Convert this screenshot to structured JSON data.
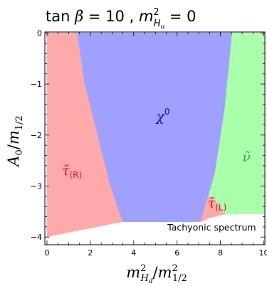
{
  "chart_data": {
    "type": "region-map",
    "title": {
      "prefix": "tan ",
      "beta": "β",
      "equals": " = 10 ,  ",
      "m": "m",
      "sup": "2",
      "sub": "H",
      "subsub": "u",
      "tail": " = 0"
    },
    "xlabel": {
      "m1": "m",
      "sup1": "2",
      "sub1": "H",
      "subsub1": "d",
      "slash": "/",
      "m2": "m",
      "sup2": "2",
      "sub2": "1/2"
    },
    "ylabel": {
      "a": "A",
      "sub": "0",
      "slash": "/",
      "m": "m",
      "msub": "1/2"
    },
    "xlim": [
      -0.1,
      10.05
    ],
    "ylim": [
      -4.15,
      0.02
    ],
    "xticks": [
      0,
      2,
      4,
      6,
      8,
      10
    ],
    "xtick_labels": [
      "0",
      "2",
      "4",
      "6",
      "8",
      "10"
    ],
    "yticks": [
      0,
      -1,
      -2,
      -3,
      -4
    ],
    "ytick_labels": [
      "0",
      "−1",
      "−2",
      "−3",
      "−4"
    ],
    "colors": {
      "stau": "#FFAAAA",
      "neutralino": "#A0A0FF",
      "sneutrino": "#AAFFAA",
      "tachyonic": "#FFFFFF",
      "stau_label": "#E8102A",
      "chi_label": "#1010C8",
      "nu_label": "#4C9A4C"
    },
    "regions": [
      {
        "name": "stau_R",
        "points": [
          [
            0,
            -4.0
          ],
          [
            0,
            0
          ],
          [
            1.4,
            0
          ],
          [
            1.75,
            -1.0
          ],
          [
            2.35,
            -2.0
          ],
          [
            2.9,
            -2.95
          ],
          [
            3.5,
            -3.7
          ],
          [
            3.2,
            -3.72
          ],
          [
            0.25,
            -3.97
          ],
          [
            0,
            -4.0
          ]
        ]
      },
      {
        "name": "neutralino",
        "points": [
          [
            1.4,
            0
          ],
          [
            8.55,
            0
          ],
          [
            8.2,
            -1.5
          ],
          [
            7.75,
            -2.75
          ],
          [
            7.3,
            -3.4
          ],
          [
            7.1,
            -3.7
          ],
          [
            3.5,
            -3.7
          ],
          [
            2.9,
            -2.95
          ],
          [
            2.35,
            -2.0
          ],
          [
            1.75,
            -1.0
          ],
          [
            1.4,
            0
          ]
        ]
      },
      {
        "name": "sneutrino",
        "points": [
          [
            8.55,
            0
          ],
          [
            10,
            0
          ],
          [
            10,
            -3.55
          ],
          [
            8.2,
            -3.55
          ],
          [
            7.75,
            -3.3
          ],
          [
            7.45,
            -3.2
          ],
          [
            7.75,
            -2.75
          ],
          [
            8.2,
            -1.5
          ],
          [
            8.55,
            0
          ]
        ]
      },
      {
        "name": "stau_L",
        "points": [
          [
            7.45,
            -3.2
          ],
          [
            7.75,
            -3.3
          ],
          [
            8.2,
            -3.55
          ],
          [
            7.5,
            -3.62
          ],
          [
            7.1,
            -3.7
          ],
          [
            7.3,
            -3.4
          ],
          [
            7.45,
            -3.2
          ]
        ]
      }
    ],
    "tachyonic_boundary": [
      [
        0,
        -4.0
      ],
      [
        0.25,
        -3.97
      ],
      [
        3.2,
        -3.72
      ],
      [
        7.1,
        -3.7
      ],
      [
        7.5,
        -3.62
      ],
      [
        8.2,
        -3.55
      ],
      [
        10,
        -3.55
      ]
    ],
    "labels": [
      {
        "id": "stau_R",
        "main": "τ̃",
        "sub": "(R)",
        "x": 1.15,
        "y": -2.78,
        "color_key": "stau_label"
      },
      {
        "id": "chi",
        "main": "χ",
        "sup": "0",
        "x": 5.35,
        "y": -1.72,
        "color_key": "chi_label"
      },
      {
        "id": "nu",
        "main": "ν̃",
        "x": 9.2,
        "y": -2.52,
        "color_key": "nu_label"
      },
      {
        "id": "stau_L",
        "main": "τ̃",
        "sub": "(L)",
        "x": 7.85,
        "y": -3.42,
        "color_key": "stau_label"
      }
    ],
    "annotation": {
      "text": "Tachyonic spectrum",
      "x": 7.6,
      "y": -3.87
    }
  }
}
